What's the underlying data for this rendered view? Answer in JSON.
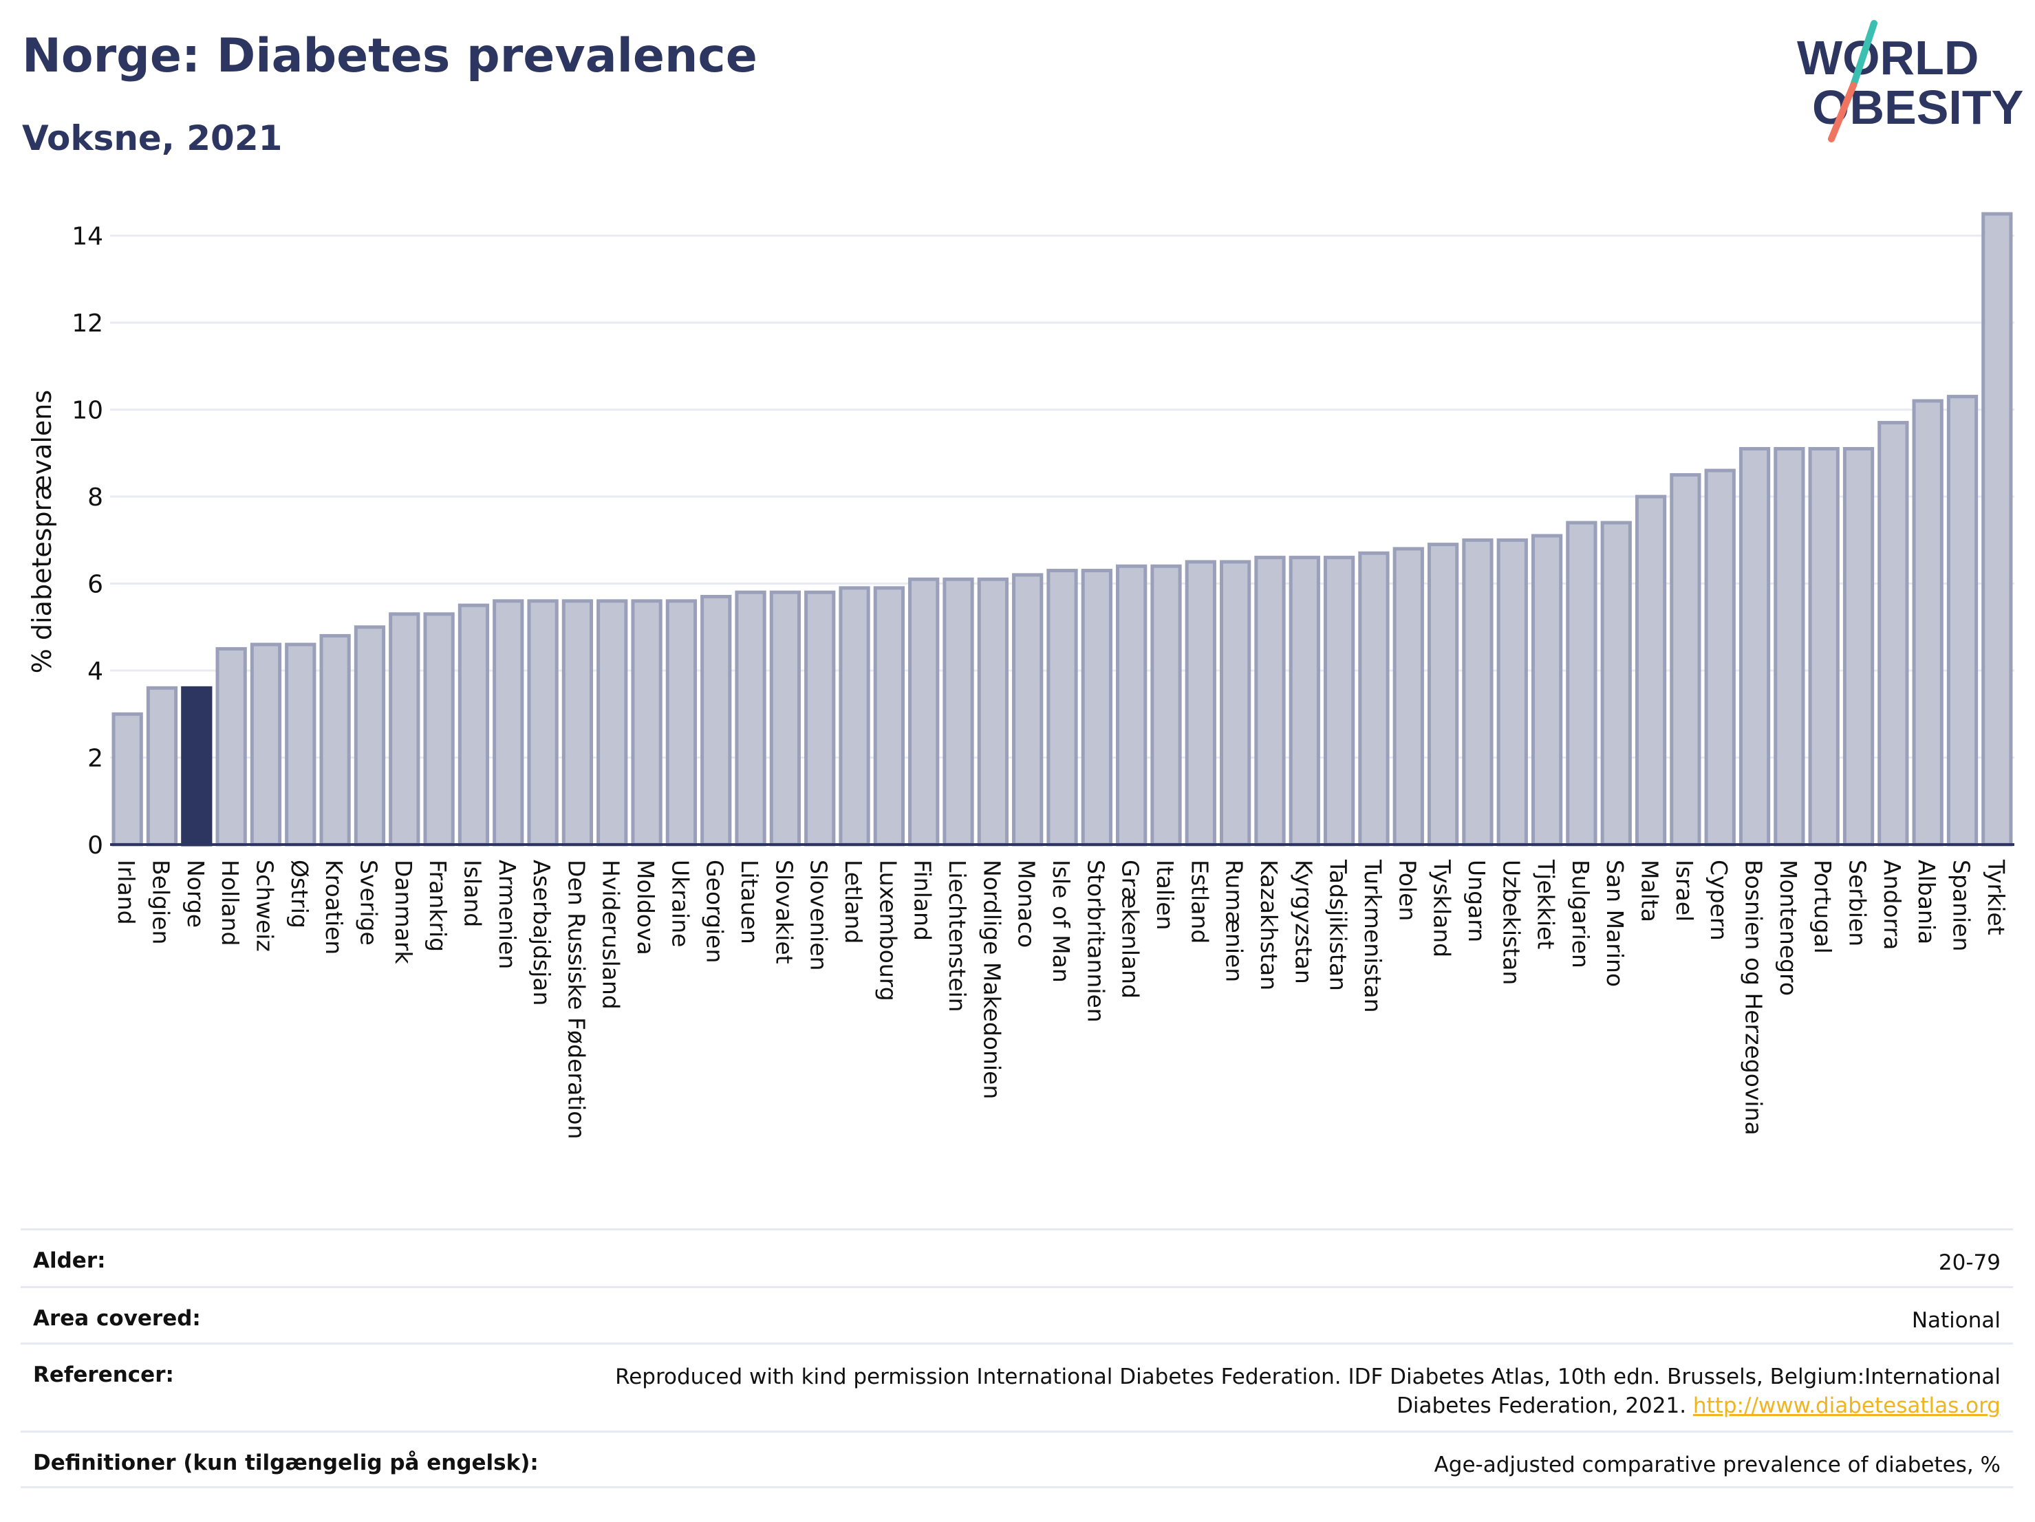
{
  "header": {
    "title": "Norge: Diabetes prevalence",
    "subtitle": "Voksne, 2021"
  },
  "logo": {
    "line1": "WORLD",
    "line2": "OBESITY"
  },
  "colors": {
    "highlight_bar": "#2c3660",
    "bar_fill": "#c0c4d3",
    "bar_stroke": "#9aa0b9",
    "title": "#2c3660",
    "link": "#f0b41e"
  },
  "chart_data": {
    "type": "bar",
    "title": "Norge: Diabetes prevalence",
    "subtitle": "Voksne, 2021",
    "xlabel": "",
    "ylabel": "% diabetesprævalens",
    "ylim": [
      0,
      14.8
    ],
    "yticks": [
      0,
      2,
      4,
      6,
      8,
      10,
      12,
      14
    ],
    "grid": true,
    "highlight": "Norge",
    "categories": [
      "Irland",
      "Belgien",
      "Norge",
      "Holland",
      "Schweiz",
      "Østrig",
      "Kroatien",
      "Sverige",
      "Danmark",
      "Frankrig",
      "Island",
      "Armenien",
      "Aserbajdsjan",
      "Den Russiske Føderation",
      "Hviderusland",
      "Moldova",
      "Ukraine",
      "Georgien",
      "Litauen",
      "Slovakiet",
      "Slovenien",
      "Letland",
      "Luxembourg",
      "Finland",
      "Liechtenstein",
      "Nordlige Makedonien",
      "Monaco",
      "Isle of Man",
      "Storbritannien",
      "Grækenland",
      "Italien",
      "Estland",
      "Rumænien",
      "Kazakhstan",
      "Kyrgyzstan",
      "Tadsjikistan",
      "Turkmenistan",
      "Polen",
      "Tyskland",
      "Ungarn",
      "Uzbekistan",
      "Tjekkiet",
      "Bulgarien",
      "San Marino",
      "Malta",
      "Israel",
      "Cypern",
      "Bosnien og Herzegovina",
      "Montenegro",
      "Portugal",
      "Serbien",
      "Andorra",
      "Albania",
      "Spanien",
      "Tyrkiet"
    ],
    "values": [
      3.0,
      3.6,
      3.6,
      4.5,
      4.6,
      4.6,
      4.8,
      5.0,
      5.3,
      5.3,
      5.5,
      5.6,
      5.6,
      5.6,
      5.6,
      5.6,
      5.6,
      5.7,
      5.8,
      5.8,
      5.8,
      5.9,
      5.9,
      6.1,
      6.1,
      6.1,
      6.2,
      6.3,
      6.3,
      6.4,
      6.4,
      6.5,
      6.5,
      6.6,
      6.6,
      6.6,
      6.7,
      6.8,
      6.9,
      7.0,
      7.0,
      7.1,
      7.4,
      7.4,
      8.0,
      8.5,
      8.6,
      9.1,
      9.1,
      9.1,
      9.1,
      9.7,
      10.2,
      10.3,
      14.5
    ]
  },
  "info": [
    {
      "label": "Alder:",
      "value": "20-79"
    },
    {
      "label": "Area covered:",
      "value": "National"
    },
    {
      "label": "Referencer:",
      "value": "Reproduced with kind permission International Diabetes Federation.  IDF Diabetes Atlas, 10th edn. Brussels, Belgium:International Diabetes Federation, 2021.",
      "link": "http://www.diabetesatlas.org"
    },
    {
      "label": "Definitioner (kun tilgængelig på engelsk):",
      "value": "Age-adjusted comparative prevalence of diabetes, %"
    }
  ]
}
